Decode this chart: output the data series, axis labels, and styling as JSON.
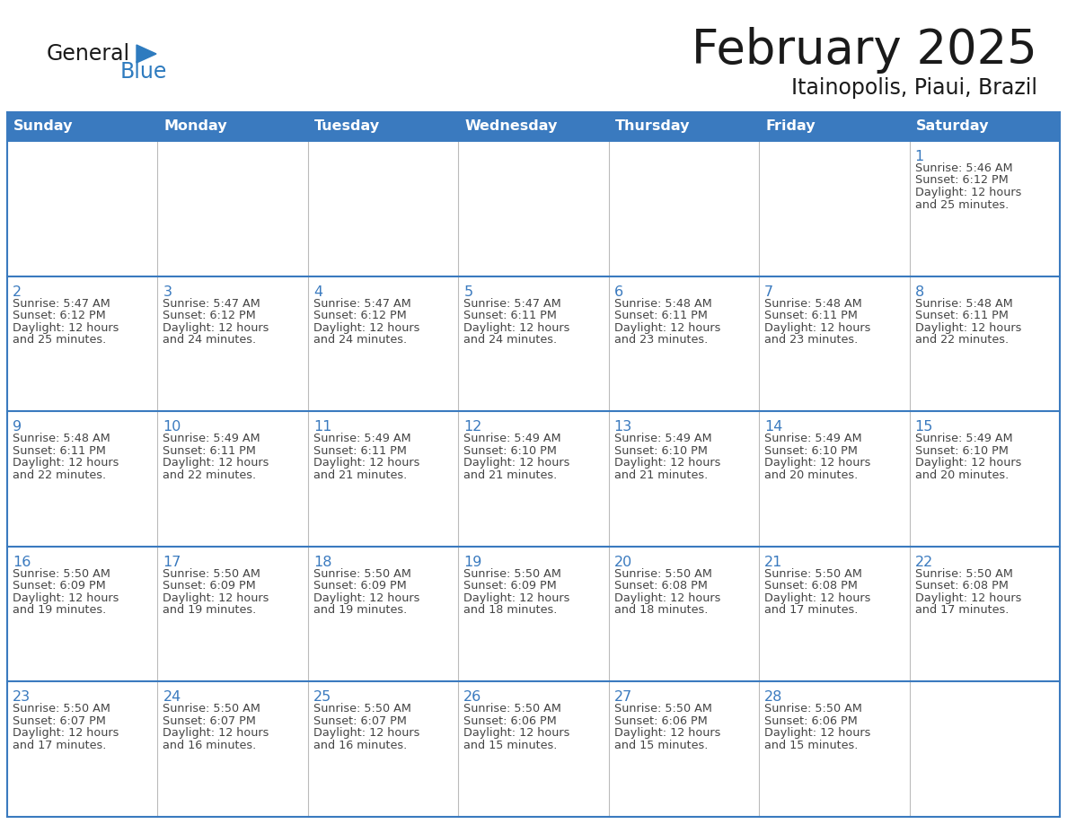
{
  "title": "February 2025",
  "subtitle": "Itainopolis, Piaui, Brazil",
  "days_of_week": [
    "Sunday",
    "Monday",
    "Tuesday",
    "Wednesday",
    "Thursday",
    "Friday",
    "Saturday"
  ],
  "header_bg": "#3a7abf",
  "header_text": "#ffffff",
  "cell_bg_white": "#ffffff",
  "cell_bg_gray": "#f0f0f0",
  "border_color": "#3a7abf",
  "divider_color": "#3a7abf",
  "day_number_color": "#3a7abf",
  "cell_text_color": "#444444",
  "title_color": "#1a1a1a",
  "subtitle_color": "#1a1a1a",
  "logo_general_color": "#1a1a1a",
  "logo_blue_color": "#2e7bbf",
  "calendar_data": [
    [
      null,
      null,
      null,
      null,
      null,
      null,
      {
        "day": 1,
        "sunrise": "5:46 AM",
        "sunset": "6:12 PM",
        "daylight": "12 hours and 25 minutes."
      }
    ],
    [
      {
        "day": 2,
        "sunrise": "5:47 AM",
        "sunset": "6:12 PM",
        "daylight": "12 hours and 25 minutes."
      },
      {
        "day": 3,
        "sunrise": "5:47 AM",
        "sunset": "6:12 PM",
        "daylight": "12 hours and 24 minutes."
      },
      {
        "day": 4,
        "sunrise": "5:47 AM",
        "sunset": "6:12 PM",
        "daylight": "12 hours and 24 minutes."
      },
      {
        "day": 5,
        "sunrise": "5:47 AM",
        "sunset": "6:11 PM",
        "daylight": "12 hours and 24 minutes."
      },
      {
        "day": 6,
        "sunrise": "5:48 AM",
        "sunset": "6:11 PM",
        "daylight": "12 hours and 23 minutes."
      },
      {
        "day": 7,
        "sunrise": "5:48 AM",
        "sunset": "6:11 PM",
        "daylight": "12 hours and 23 minutes."
      },
      {
        "day": 8,
        "sunrise": "5:48 AM",
        "sunset": "6:11 PM",
        "daylight": "12 hours and 22 minutes."
      }
    ],
    [
      {
        "day": 9,
        "sunrise": "5:48 AM",
        "sunset": "6:11 PM",
        "daylight": "12 hours and 22 minutes."
      },
      {
        "day": 10,
        "sunrise": "5:49 AM",
        "sunset": "6:11 PM",
        "daylight": "12 hours and 22 minutes."
      },
      {
        "day": 11,
        "sunrise": "5:49 AM",
        "sunset": "6:11 PM",
        "daylight": "12 hours and 21 minutes."
      },
      {
        "day": 12,
        "sunrise": "5:49 AM",
        "sunset": "6:10 PM",
        "daylight": "12 hours and 21 minutes."
      },
      {
        "day": 13,
        "sunrise": "5:49 AM",
        "sunset": "6:10 PM",
        "daylight": "12 hours and 21 minutes."
      },
      {
        "day": 14,
        "sunrise": "5:49 AM",
        "sunset": "6:10 PM",
        "daylight": "12 hours and 20 minutes."
      },
      {
        "day": 15,
        "sunrise": "5:49 AM",
        "sunset": "6:10 PM",
        "daylight": "12 hours and 20 minutes."
      }
    ],
    [
      {
        "day": 16,
        "sunrise": "5:50 AM",
        "sunset": "6:09 PM",
        "daylight": "12 hours and 19 minutes."
      },
      {
        "day": 17,
        "sunrise": "5:50 AM",
        "sunset": "6:09 PM",
        "daylight": "12 hours and 19 minutes."
      },
      {
        "day": 18,
        "sunrise": "5:50 AM",
        "sunset": "6:09 PM",
        "daylight": "12 hours and 19 minutes."
      },
      {
        "day": 19,
        "sunrise": "5:50 AM",
        "sunset": "6:09 PM",
        "daylight": "12 hours and 18 minutes."
      },
      {
        "day": 20,
        "sunrise": "5:50 AM",
        "sunset": "6:08 PM",
        "daylight": "12 hours and 18 minutes."
      },
      {
        "day": 21,
        "sunrise": "5:50 AM",
        "sunset": "6:08 PM",
        "daylight": "12 hours and 17 minutes."
      },
      {
        "day": 22,
        "sunrise": "5:50 AM",
        "sunset": "6:08 PM",
        "daylight": "12 hours and 17 minutes."
      }
    ],
    [
      {
        "day": 23,
        "sunrise": "5:50 AM",
        "sunset": "6:07 PM",
        "daylight": "12 hours and 17 minutes."
      },
      {
        "day": 24,
        "sunrise": "5:50 AM",
        "sunset": "6:07 PM",
        "daylight": "12 hours and 16 minutes."
      },
      {
        "day": 25,
        "sunrise": "5:50 AM",
        "sunset": "6:07 PM",
        "daylight": "12 hours and 16 minutes."
      },
      {
        "day": 26,
        "sunrise": "5:50 AM",
        "sunset": "6:06 PM",
        "daylight": "12 hours and 15 minutes."
      },
      {
        "day": 27,
        "sunrise": "5:50 AM",
        "sunset": "6:06 PM",
        "daylight": "12 hours and 15 minutes."
      },
      {
        "day": 28,
        "sunrise": "5:50 AM",
        "sunset": "6:06 PM",
        "daylight": "12 hours and 15 minutes."
      },
      null
    ]
  ]
}
